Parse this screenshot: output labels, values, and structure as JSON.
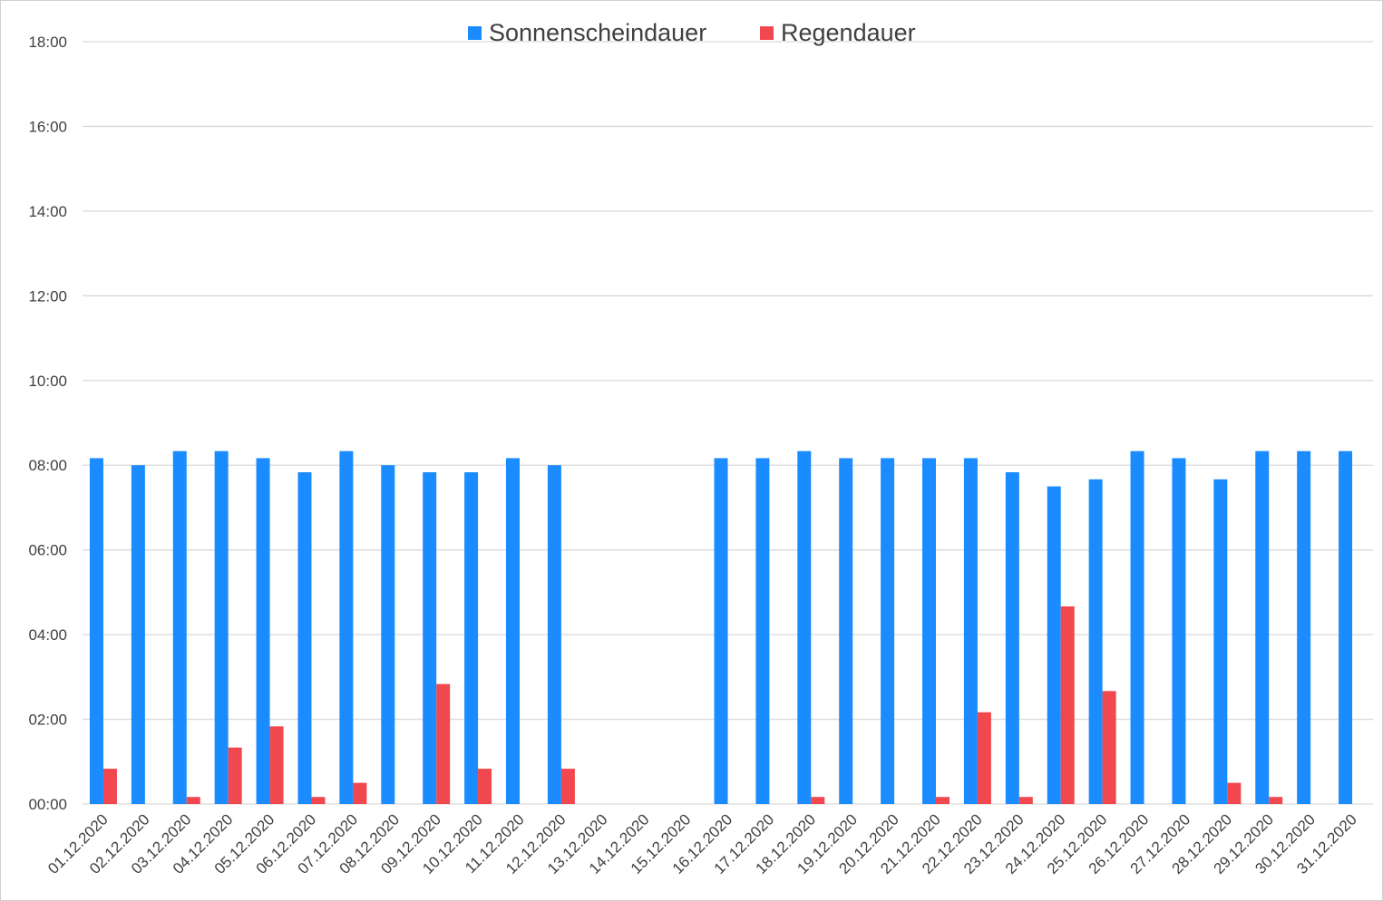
{
  "chart_data": {
    "type": "bar",
    "title": "",
    "xlabel": "",
    "ylabel": "",
    "ylim": [
      "00:00",
      "18:00"
    ],
    "y_ticks": [
      "00:00",
      "02:00",
      "04:00",
      "06:00",
      "08:00",
      "10:00",
      "12:00",
      "14:00",
      "16:00",
      "18:00"
    ],
    "grid": true,
    "legend_position": "top-center",
    "categories": [
      "01.12.2020",
      "02.12.2020",
      "03.12.2020",
      "04.12.2020",
      "05.12.2020",
      "06.12.2020",
      "07.12.2020",
      "08.12.2020",
      "09.12.2020",
      "10.12.2020",
      "11.12.2020",
      "12.12.2020",
      "13.12.2020",
      "14.12.2020",
      "15.12.2020",
      "16.12.2020",
      "17.12.2020",
      "18.12.2020",
      "19.12.2020",
      "20.12.2020",
      "21.12.2020",
      "22.12.2020",
      "23.12.2020",
      "24.12.2020",
      "25.12.2020",
      "26.12.2020",
      "27.12.2020",
      "28.12.2020",
      "29.12.2020",
      "30.12.2020",
      "31.12.2020"
    ],
    "series": [
      {
        "name": "Sonnenscheindauer",
        "color": "#1a8cff",
        "values": [
          "08:10",
          "08:00",
          "08:20",
          "08:20",
          "08:10",
          "07:50",
          "08:20",
          "08:00",
          "07:50",
          "07:50",
          "08:10",
          "08:00",
          null,
          null,
          null,
          "08:10",
          "08:10",
          "08:20",
          "08:10",
          "08:10",
          "08:10",
          "08:10",
          "07:50",
          "07:30",
          "07:40",
          "08:20",
          "08:10",
          "07:40",
          "08:20",
          "08:20",
          "08:20"
        ]
      },
      {
        "name": "Regendauer",
        "color": "#f0484e",
        "values": [
          "00:50",
          null,
          "00:10",
          "01:20",
          "01:50",
          "00:10",
          "00:30",
          null,
          "02:50",
          "00:50",
          null,
          "00:50",
          null,
          null,
          null,
          null,
          null,
          "00:10",
          null,
          null,
          "00:10",
          "02:10",
          "00:10",
          "04:40",
          "02:40",
          null,
          null,
          "00:30",
          "00:10",
          null,
          null
        ]
      }
    ]
  }
}
